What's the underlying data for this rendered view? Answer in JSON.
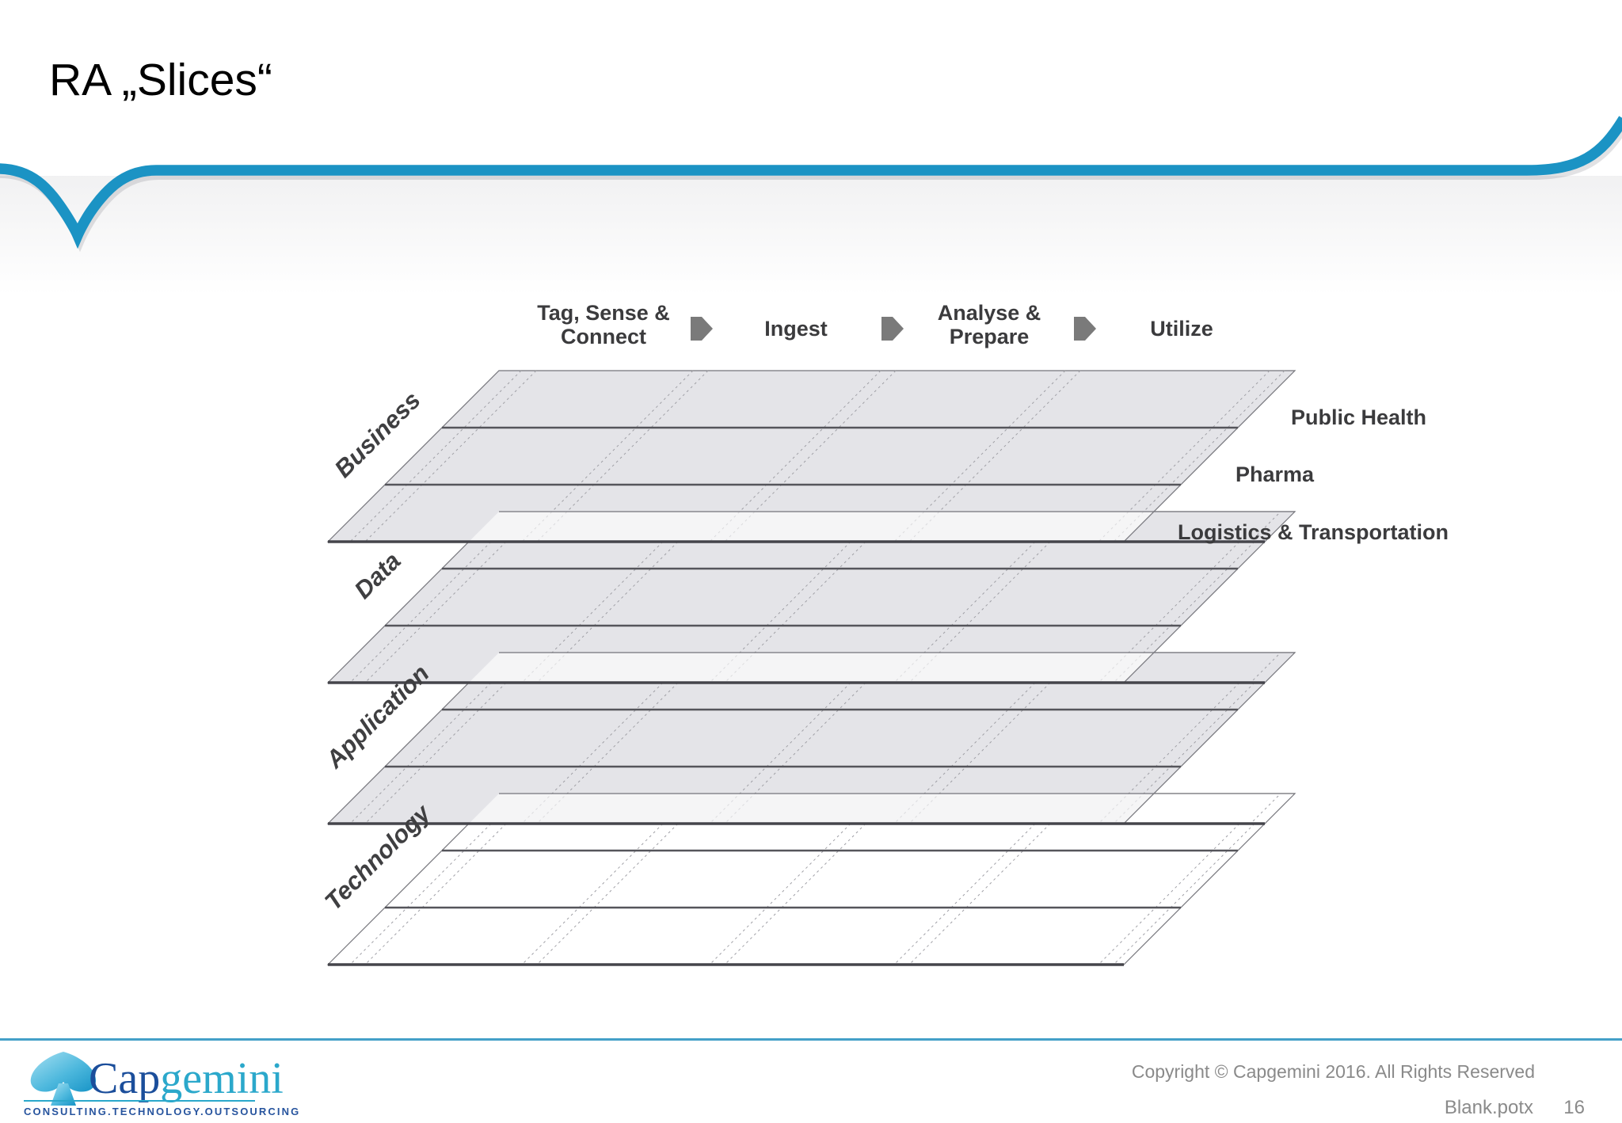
{
  "slide": {
    "title": "RA „Slices“",
    "copyright": "Copyright © Capgemini 2016. All Rights Reserved",
    "template_name": "Blank.potx",
    "page_number": "16"
  },
  "process_steps": [
    {
      "line1": "Tag, Sense &",
      "line2": "Connect"
    },
    {
      "line1": "Ingest",
      "line2": ""
    },
    {
      "line1": "Analyse &",
      "line2": "Prepare"
    },
    {
      "line1": "Utilize",
      "line2": ""
    }
  ],
  "layers": [
    {
      "label": "Business"
    },
    {
      "label": "Data"
    },
    {
      "label": "Application"
    },
    {
      "label": "Technology"
    }
  ],
  "industries": [
    {
      "label": "Public Health"
    },
    {
      "label": "Pharma"
    },
    {
      "label": "Logistics & Transportation"
    }
  ],
  "logo": {
    "brand_primary": "Cap",
    "brand_secondary": "gemini",
    "tagline": "CONSULTING.TECHNOLOGY.OUTSOURCING"
  },
  "colors": {
    "accent_blue": "#1b93c4",
    "footer_rule_blue": "#43a0c8",
    "sheet_gray": "#e4e4e8",
    "sheet_line_dark": "#55555b",
    "arrow_gray": "#7a7a7a",
    "logo_dark_blue": "#1b4e9b",
    "logo_light_blue": "#2ba8cb"
  }
}
